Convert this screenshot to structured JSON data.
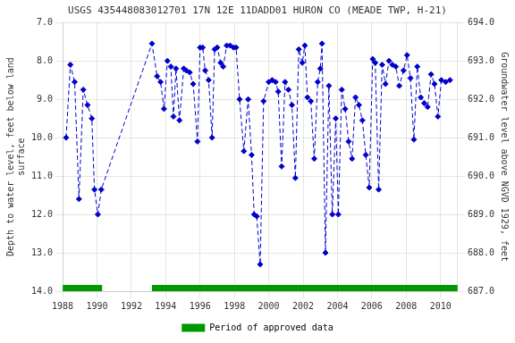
{
  "chart_data": {
    "type": "line",
    "title": "USGS 435448083012701 17N 12E 11DADD01 HURON CO (MEADE TWP, H-21)",
    "y_label": "Depth to water level, feet below land\nsurface",
    "y2_label": "Groundwater level above NGVD 1929, feet",
    "xlim": [
      1988,
      2011
    ],
    "xticks": [
      1988,
      1990,
      1992,
      1994,
      1996,
      1998,
      2000,
      2002,
      2004,
      2006,
      2008,
      2010
    ],
    "ylim": [
      14.0,
      7.0
    ],
    "yticks": [
      {
        "value": 7.0,
        "label": "7.0"
      },
      {
        "value": 8.0,
        "label": "8.0"
      },
      {
        "value": 9.0,
        "label": "9.0"
      },
      {
        "value": 10.0,
        "label": "10.0"
      },
      {
        "value": 11.0,
        "label": "11.0"
      },
      {
        "value": 12.0,
        "label": "12.0"
      },
      {
        "value": 13.0,
        "label": "13.0"
      },
      {
        "value": 14.0,
        "label": "14.0"
      }
    ],
    "y2lim": [
      687.0,
      694.0
    ],
    "y2ticks": [
      {
        "value": 694.0,
        "label": "694.0"
      },
      {
        "value": 693.0,
        "label": "693.0"
      },
      {
        "value": 692.0,
        "label": "692.0"
      },
      {
        "value": 691.0,
        "label": "691.0"
      },
      {
        "value": 690.0,
        "label": "690.0"
      },
      {
        "value": 689.0,
        "label": "689.0"
      },
      {
        "value": 688.0,
        "label": "688.0"
      },
      {
        "value": 687.0,
        "label": "687.0"
      }
    ],
    "grid": true,
    "legend": "bottom",
    "x": [
      1988.2,
      1988.45,
      1988.7,
      1988.95,
      1989.2,
      1989.45,
      1989.7,
      1989.85,
      1990.05,
      1990.25,
      1993.2,
      1993.5,
      1993.7,
      1993.9,
      1994.1,
      1994.3,
      1994.45,
      1994.6,
      1994.8,
      1995.05,
      1995.2,
      1995.4,
      1995.6,
      1995.85,
      1996.0,
      1996.15,
      1996.3,
      1996.5,
      1996.7,
      1996.85,
      1997.0,
      1997.2,
      1997.35,
      1997.55,
      1997.75,
      1997.95,
      1998.1,
      1998.3,
      1998.55,
      1998.8,
      1999.0,
      1999.15,
      1999.3,
      1999.5,
      1999.7,
      2000.0,
      2000.2,
      2000.4,
      2000.55,
      2000.75,
      2000.95,
      2001.15,
      2001.35,
      2001.55,
      2001.75,
      2001.95,
      2002.1,
      2002.25,
      2002.45,
      2002.65,
      2002.85,
      2003.0,
      2003.1,
      2003.3,
      2003.5,
      2003.7,
      2003.9,
      2004.05,
      2004.25,
      2004.45,
      2004.65,
      2004.85,
      2005.05,
      2005.25,
      2005.45,
      2005.65,
      2005.85,
      2006.05,
      2006.2,
      2006.4,
      2006.6,
      2006.8,
      2007.0,
      2007.2,
      2007.4,
      2007.6,
      2007.85,
      2008.05,
      2008.25,
      2008.45,
      2008.65,
      2008.85,
      2009.05,
      2009.25,
      2009.45,
      2009.65,
      2009.85,
      2010.05,
      2010.3,
      2010.55
    ],
    "series": [
      {
        "color": "#0000cc",
        "line_style": "dashed",
        "marker": "diamond",
        "values": [
          10.0,
          8.1,
          8.55,
          11.6,
          8.75,
          9.15,
          9.5,
          11.35,
          12.0,
          11.35,
          7.55,
          8.4,
          8.55,
          9.25,
          8.0,
          8.15,
          9.45,
          8.2,
          9.55,
          8.2,
          8.25,
          8.3,
          8.6,
          10.1,
          7.65,
          7.65,
          8.25,
          8.5,
          10.0,
          7.7,
          7.65,
          8.05,
          8.15,
          7.6,
          7.6,
          7.65,
          7.65,
          9.0,
          10.35,
          9.0,
          10.45,
          12.0,
          12.05,
          13.3,
          9.05,
          8.55,
          8.5,
          8.55,
          8.8,
          10.75,
          8.55,
          8.75,
          9.15,
          11.05,
          7.7,
          8.05,
          7.6,
          8.95,
          9.05,
          10.55,
          8.55,
          8.2,
          7.55,
          13.0,
          8.65,
          12.0,
          9.5,
          12.0,
          8.75,
          9.25,
          10.1,
          10.55,
          8.95,
          9.15,
          9.55,
          10.45,
          11.3,
          7.95,
          8.05,
          11.35,
          8.1,
          8.6,
          8.0,
          8.1,
          8.15,
          8.65,
          8.25,
          7.85,
          8.45,
          10.05,
          8.15,
          8.95,
          9.1,
          9.2,
          8.35,
          8.6,
          9.45,
          8.5,
          8.55,
          8.5
        ]
      }
    ],
    "approved_periods": {
      "name": "Period of approved data",
      "color": "#009900",
      "periods": [
        [
          1988.0,
          1990.3
        ],
        [
          1993.2,
          2011.0
        ]
      ]
    }
  }
}
